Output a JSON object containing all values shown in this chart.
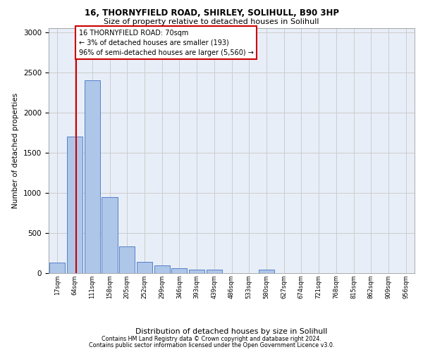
{
  "title_line1": "16, THORNYFIELD ROAD, SHIRLEY, SOLIHULL, B90 3HP",
  "title_line2": "Size of property relative to detached houses in Solihull",
  "xlabel": "Distribution of detached houses by size in Solihull",
  "ylabel": "Number of detached properties",
  "categories": [
    "17sqm",
    "64sqm",
    "111sqm",
    "158sqm",
    "205sqm",
    "252sqm",
    "299sqm",
    "346sqm",
    "393sqm",
    "439sqm",
    "486sqm",
    "533sqm",
    "580sqm",
    "627sqm",
    "674sqm",
    "721sqm",
    "768sqm",
    "815sqm",
    "862sqm",
    "909sqm",
    "956sqm"
  ],
  "values": [
    130,
    1700,
    2400,
    940,
    330,
    140,
    90,
    60,
    40,
    40,
    0,
    0,
    40,
    0,
    0,
    0,
    0,
    0,
    0,
    0,
    0
  ],
  "bar_color": "#aec6e8",
  "bar_edge_color": "#4472c4",
  "annotation_text_line1": "16 THORNYFIELD ROAD: 70sqm",
  "annotation_text_line2": "← 3% of detached houses are smaller (193)",
  "annotation_text_line3": "96% of semi-detached houses are larger (5,560) →",
  "annotation_box_facecolor": "#ffffff",
  "annotation_box_edgecolor": "#cc0000",
  "vline_color": "#cc0000",
  "vline_x_idx": 1.08,
  "ylim_max": 3050,
  "yticks": [
    0,
    500,
    1000,
    1500,
    2000,
    2500,
    3000
  ],
  "grid_color": "#cccccc",
  "plot_bg_color": "#e8eef8",
  "footer_line1": "Contains HM Land Registry data © Crown copyright and database right 2024.",
  "footer_line2": "Contains public sector information licensed under the Open Government Licence v3.0."
}
